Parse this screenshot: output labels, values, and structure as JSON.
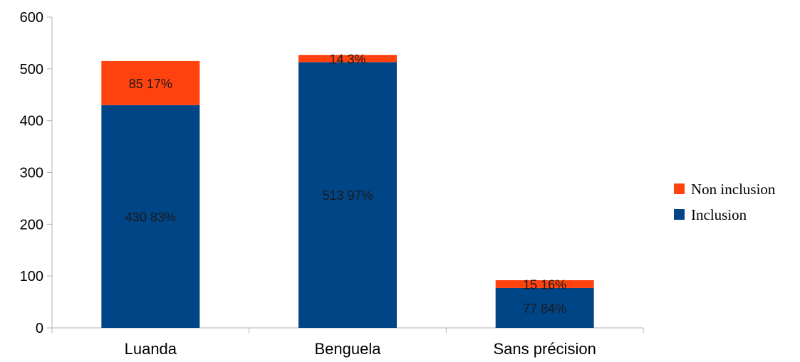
{
  "chart_data": {
    "type": "bar",
    "stacked": true,
    "title": "",
    "xlabel": "",
    "ylabel": "",
    "ylim": [
      0,
      600
    ],
    "yticks": [
      0,
      100,
      200,
      300,
      400,
      500,
      600
    ],
    "grid": false,
    "legend_position": "right",
    "categories": [
      "Luanda",
      "Benguela",
      "Sans précision"
    ],
    "series": [
      {
        "name": "Inclusion",
        "color": "#004586",
        "values": [
          430,
          513,
          77
        ],
        "labels": [
          "430 83%",
          "513 97%",
          "77 84%"
        ]
      },
      {
        "name": "Non inclusion",
        "color": "#ff420e",
        "values": [
          85,
          14,
          15
        ],
        "labels": [
          "85 17%",
          "14 3%",
          "15 16%"
        ]
      }
    ],
    "legend_order": [
      "Non inclusion",
      "Inclusion"
    ]
  }
}
